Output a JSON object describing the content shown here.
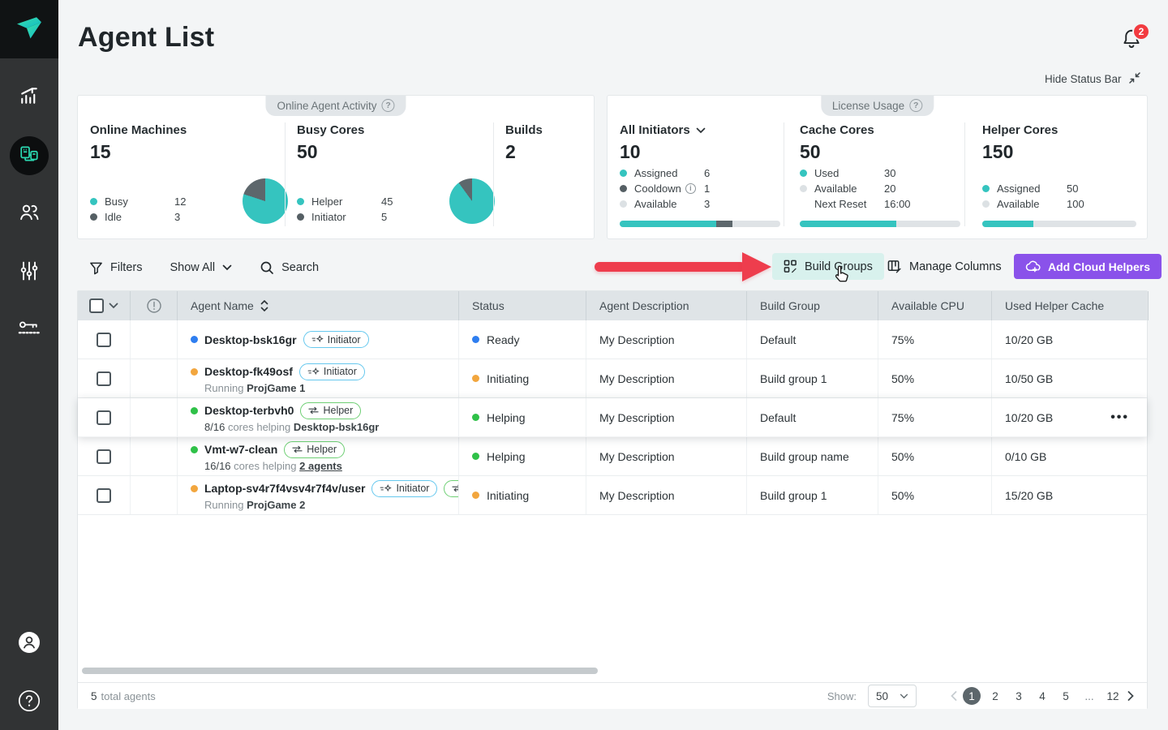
{
  "colors": {
    "teal": "#35c4bf",
    "dark_gray_slice": "#5d676c",
    "light_track": "#dfe3e6",
    "status_blue": "#2e7ef0",
    "status_orange": "#f2a63e",
    "status_green": "#2fc148",
    "arrow_red": "#ee3d4d",
    "button_purple": "#8a52ea",
    "button_mint": "#d8f1ed"
  },
  "sidebar": {
    "items": [
      {
        "name": "analytics"
      },
      {
        "name": "agents",
        "active": true
      },
      {
        "name": "users"
      },
      {
        "name": "settings"
      },
      {
        "name": "license"
      }
    ]
  },
  "header": {
    "title": "Agent List",
    "notification_count": "2",
    "hide_status_bar_label": "Hide Status Bar"
  },
  "status_bar": {
    "activity_card": {
      "label": "Online Agent Activity",
      "online_machines": {
        "title": "Online Machines",
        "value": "15",
        "legend": [
          {
            "label": "Busy",
            "value": "12"
          },
          {
            "label": "Idle",
            "value": "3"
          }
        ],
        "pie": {
          "teal_deg": 288
        }
      },
      "busy_cores": {
        "title": "Busy Cores",
        "value": "50",
        "legend": [
          {
            "label": "Helper",
            "value": "45"
          },
          {
            "label": "Initiator",
            "value": "5"
          }
        ],
        "pie": {
          "teal_deg": 324
        }
      },
      "builds": {
        "title": "Builds",
        "value": "2"
      }
    },
    "license_card": {
      "label": "License Usage",
      "initiators": {
        "title": "All Initiators",
        "value": "10",
        "legend": [
          {
            "label": "Assigned",
            "value": "6"
          },
          {
            "label": "Cooldown",
            "value": "1"
          },
          {
            "label": "Available",
            "value": "3"
          }
        ],
        "bar": [
          {
            "color": "teal",
            "pct": 60
          },
          {
            "color": "dark",
            "pct": 10
          }
        ]
      },
      "cache_cores": {
        "title": "Cache Cores",
        "value": "50",
        "legend": [
          {
            "label": "Used",
            "value": "30"
          },
          {
            "label": "Available",
            "value": "20"
          },
          {
            "label": "Next Reset",
            "value": "16:00"
          }
        ],
        "bar": [
          {
            "color": "teal",
            "pct": 60
          }
        ]
      },
      "helper_cores": {
        "title": "Helper Cores",
        "value": "150",
        "legend": [
          {
            "label": "Assigned",
            "value": "50"
          },
          {
            "label": "Available",
            "value": "100"
          }
        ],
        "bar": [
          {
            "color": "teal",
            "pct": 33
          }
        ]
      }
    }
  },
  "toolbar": {
    "filters": "Filters",
    "show_all": "Show All",
    "search": "Search",
    "build_groups": "Build Groups",
    "manage_columns": "Manage Columns",
    "add_cloud_helpers": "Add Cloud Helpers"
  },
  "table": {
    "columns": {
      "agent_name": "Agent Name",
      "status": "Status",
      "description": "Agent Description",
      "build_group": "Build Group",
      "available_cpu": "Available CPU",
      "used_helper_cache": "Used Helper Cache"
    },
    "rows": [
      {
        "name": "Desktop-bsk16gr",
        "badge1": "Initiator",
        "status": "Ready",
        "description": "My Description",
        "build_group": "Default",
        "cpu": "75%",
        "cache": "10/20 GB"
      },
      {
        "name": "Desktop-fk49osf",
        "badge1": "Initiator",
        "sub1": "Running",
        "sub2": "ProjGame 1",
        "status": "Initiating",
        "description": "My Description",
        "build_group": "Build group 1",
        "cpu": "50%",
        "cache": "10/50 GB"
      },
      {
        "name": "Desktop-terbvh0",
        "badge1": "Helper",
        "sub1": "8/16",
        "sub2": "cores helping",
        "sub3": "Desktop-bsk16gr",
        "status": "Helping",
        "description": "My Description",
        "build_group": "Default",
        "cpu": "75%",
        "cache": "10/20 GB",
        "menu": "•••"
      },
      {
        "name": "Vmt-w7-clean",
        "badge1": "Helper",
        "sub1": "16/16",
        "sub2": "cores helping",
        "sub3": "2 agents",
        "status": "Helping",
        "description": "My Description",
        "build_group": "Build group name",
        "cpu": "50%",
        "cache": "0/10 GB"
      },
      {
        "name": "Laptop-sv4r7f4vsv4r7f4v/user",
        "badge1": "Initiator",
        "badge2": "Helper",
        "sub1": "Running",
        "sub2": "ProjGame 2",
        "status": "Initiating",
        "description": "My Description",
        "build_group": "Build group 1",
        "cpu": "50%",
        "cache": "15/20 GB"
      }
    ]
  },
  "footer": {
    "total_value": "5",
    "total_label": "total agents",
    "show_label": "Show:",
    "page_size": "50",
    "pages": [
      "1",
      "2",
      "3",
      "4",
      "5",
      "...",
      "12"
    ]
  }
}
